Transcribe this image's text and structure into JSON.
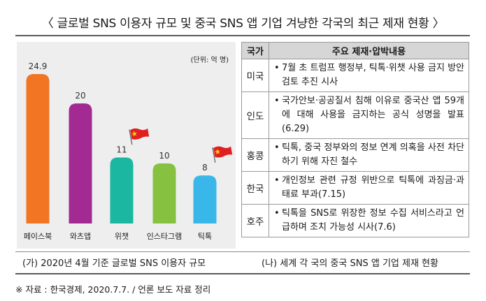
{
  "title": "〈 글로벌 SNS 이용자 규모 및 중국 SNS 앱 기업 겨냥한 각국의 최근 제재 현황 〉",
  "chart_data": {
    "type": "bar",
    "unit_label": "(단위: 억 명)",
    "categories": [
      "페이스북",
      "와츠앱",
      "위챗",
      "인스타그램",
      "틱톡"
    ],
    "values": [
      24.9,
      20,
      11,
      10,
      8
    ],
    "value_labels": [
      "24.9",
      "20",
      "11",
      "10",
      "8"
    ],
    "bar_colors": [
      "#F27524",
      "#A32A93",
      "#1BB7A1",
      "#86C140",
      "#38B7E8"
    ],
    "china_flag_on": [
      "위챗",
      "틱톡"
    ],
    "grid": false,
    "legend": "none"
  },
  "table": {
    "headers": {
      "country": "국가",
      "content": "주요 제재·압박내용"
    },
    "rows": [
      {
        "country": "미국",
        "text": "7월 초 트럼프 행정부, 틱톡·위챗 사용 금지 방안 검토 추진 시사"
      },
      {
        "country": "인도",
        "text": "국가안보·공공질서 침해 이유로 중국산 앱 59개에 대해 사용을 금지하는 공식 성명을 발표(6.29)"
      },
      {
        "country": "홍콩",
        "text": "틱톡, 중국 정부와의 정보 연계 의혹을 사전 차단하기 위해 자진 철수"
      },
      {
        "country": "한국",
        "text": "개인정보 관련 규정 위반으로 틱톡에 과징금·과태료 부과(7.15)"
      },
      {
        "country": "호주",
        "text": "틱톡을 SNS로 위장한 정보 수집 서비스라고 언급하며 조치 가능성 시사(7.6)"
      }
    ],
    "bullet": "•"
  },
  "captions": {
    "left": "(가) 2020년 4월 기준 글로벌 SNS 이용자 규모",
    "right": "(나) 세계 각 국의 중국 SNS 앱 기업 제재 현황"
  },
  "source": "※ 자료 : 한국경제, 2020.7.7. / 언론 보도 자료 정리",
  "colors": {
    "flag_red": "#E02020",
    "flag_star": "#FFD200",
    "panel_bg": "#EEEEEE",
    "header_bg": "#D6D6D6"
  }
}
